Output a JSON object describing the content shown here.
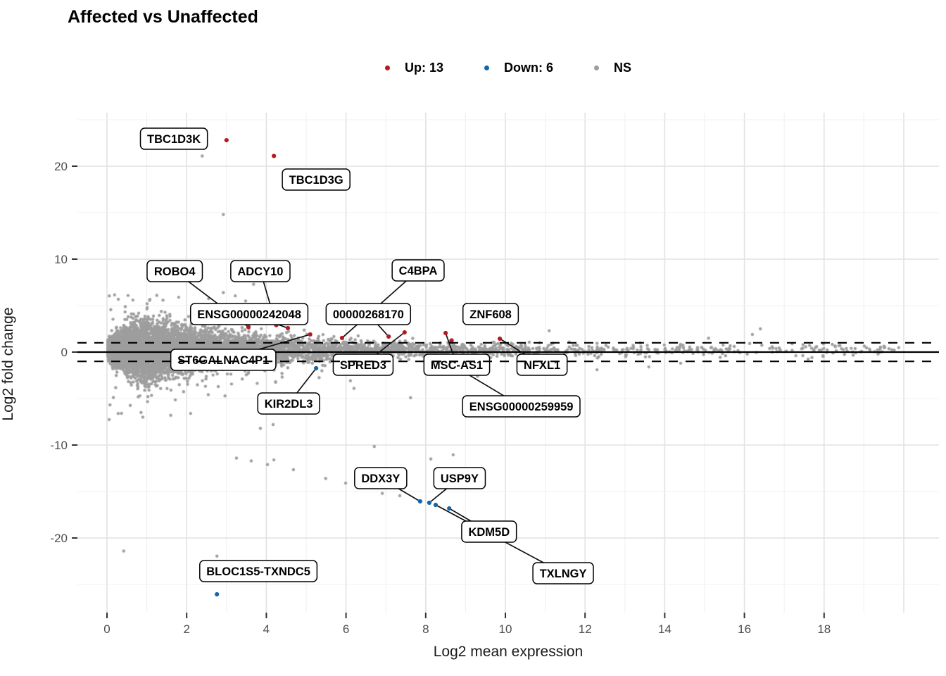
{
  "title": "Affected vs Unaffected",
  "legend": [
    {
      "label": "Up: 13",
      "color": "#B31B21"
    },
    {
      "label": "Down: 6",
      "color": "#1465AC"
    },
    {
      "label": "NS",
      "color": "#9E9E9E"
    }
  ],
  "axes": {
    "x": {
      "label": "Log2 mean expression",
      "ticks": [
        0,
        2,
        4,
        6,
        8,
        10,
        12,
        14,
        16,
        18
      ]
    },
    "y": {
      "label": "Log2 fold change",
      "ticks": [
        20,
        10,
        0,
        -10,
        -20
      ]
    }
  },
  "chart_data": {
    "type": "scatter",
    "title": "Affected vs Unaffected",
    "xlabel": "Log2 mean expression",
    "ylabel": "Log2 fold change",
    "xlim": [
      -0.74,
      20.9
    ],
    "ylim": [
      -28.0,
      25.8
    ],
    "grid": "on",
    "legend_position": "top",
    "legend_counts": {
      "up": 13,
      "down": 6,
      "ns": "NS"
    },
    "reference_lines": {
      "solid_y": 0,
      "dashed_y": [
        1,
        -1
      ]
    },
    "point_colors": {
      "up": "#B31B21",
      "down": "#1465AC",
      "ns": "#9E9E9E"
    },
    "labeled_points": [
      {
        "name": "TBC1D3K",
        "status": "up",
        "x": 3.0,
        "y": 22.8,
        "lx": 1.68,
        "ly": 22.95,
        "leader": false
      },
      {
        "name": "TBC1D3G",
        "status": "up",
        "x": 4.19,
        "y": 21.1,
        "lx": 5.25,
        "ly": 18.56,
        "leader": false
      },
      {
        "name": "ROBO4",
        "status": "up",
        "x": 3.55,
        "y": 2.7,
        "lx": 1.7,
        "ly": 8.71,
        "leader": true
      },
      {
        "name": "ADCY10",
        "status": "up",
        "x": 4.25,
        "y": 2.9,
        "lx": 3.85,
        "ly": 8.71,
        "leader": true
      },
      {
        "name": "C4BPA",
        "status": "up",
        "x": 5.9,
        "y": 1.52,
        "lx": 7.81,
        "ly": 8.79,
        "leader": true
      },
      {
        "name": "00000268170",
        "status": "up",
        "x": 7.07,
        "y": 1.67,
        "lx": 6.56,
        "ly": 4.09,
        "leader": true
      },
      {
        "name": "ENSG00000242048",
        "status": "up",
        "x": 4.54,
        "y": 2.58,
        "lx": 3.57,
        "ly": 4.09,
        "leader": true
      },
      {
        "name": "ZNF608",
        "status": "up",
        "x": 8.65,
        "y": 1.25,
        "lx": 9.63,
        "ly": 4.09,
        "leader": false
      },
      {
        "name": "ST6GALNAC4P1",
        "status": "up",
        "x": 5.1,
        "y": 1.9,
        "lx": 2.92,
        "ly": -0.83,
        "leader": true
      },
      {
        "name": "SPRED3",
        "status": "up",
        "x": 7.47,
        "y": 2.12,
        "lx": 6.43,
        "ly": -1.36,
        "leader": true
      },
      {
        "name": "MSC-AS1",
        "status": "up",
        "x": 8.5,
        "y": 2.05,
        "lx": 8.78,
        "ly": -1.36,
        "leader": true
      },
      {
        "name": "NFXL1",
        "status": "up",
        "x": 9.86,
        "y": 1.44,
        "lx": 10.92,
        "ly": -1.36,
        "leader": true
      },
      {
        "name": "ENSG00000259959",
        "status": "up",
        "x": 8.4,
        "y": -0.7,
        "lx": 10.4,
        "ly": -5.83,
        "leader": true
      },
      {
        "name": "KIR2DL3",
        "status": "down",
        "x": 5.25,
        "y": -1.74,
        "lx": 4.56,
        "ly": -5.53,
        "leader": true
      },
      {
        "name": "DDX3Y",
        "status": "down",
        "x": 7.86,
        "y": -16.06,
        "lx": 6.87,
        "ly": -13.56,
        "leader": true
      },
      {
        "name": "USP9Y",
        "status": "down",
        "x": 8.09,
        "y": -16.21,
        "lx": 8.85,
        "ly": -13.56,
        "leader": true
      },
      {
        "name": "TXLNGY",
        "status": "down",
        "x": 8.25,
        "y": -16.44,
        "lx": 11.45,
        "ly": -23.79,
        "leader": true
      },
      {
        "name": "KDM5D",
        "status": "down",
        "x": 8.59,
        "y": -16.82,
        "lx": 9.59,
        "ly": -19.32,
        "leader": true
      },
      {
        "name": "BLOC1S5-TXNDC5",
        "status": "down",
        "x": 2.76,
        "y": -26.06,
        "lx": 3.8,
        "ly": -23.56,
        "leader": false
      }
    ],
    "ns_outliers": [
      [
        2.39,
        21.1
      ],
      [
        2.92,
        14.8
      ],
      [
        0.42,
        -21.4
      ],
      [
        2.76,
        -21.95
      ],
      [
        3.25,
        -11.4
      ],
      [
        3.62,
        -11.7
      ],
      [
        4.03,
        -12.1
      ],
      [
        4.19,
        -11.6
      ],
      [
        4.68,
        -12.65
      ],
      [
        5.49,
        -13.6
      ],
      [
        5.99,
        -14.1
      ],
      [
        6.71,
        -10.15
      ],
      [
        8.13,
        -11.5
      ],
      [
        8.69,
        -11.05
      ],
      [
        6.91,
        -15.2
      ],
      [
        7.35,
        -15.45
      ],
      [
        3.85,
        -8.2
      ],
      [
        4.17,
        -7.8
      ],
      [
        7.62,
        -4.9
      ],
      [
        2.92,
        6.4
      ],
      [
        3.22,
        6.05
      ],
      [
        3.68,
        7.3
      ],
      [
        4.33,
        8.0
      ],
      [
        2.55,
        5.75
      ],
      [
        3.48,
        5.5
      ],
      [
        1.25,
        6.1
      ],
      [
        1.8,
        5.9
      ],
      [
        0.65,
        5.6
      ],
      [
        0.9,
        -7.0
      ],
      [
        1.6,
        -6.8
      ],
      [
        2.1,
        -6.6
      ],
      [
        18.4,
        0.7
      ],
      [
        19.4,
        0.3
      ],
      [
        19.5,
        0.62
      ],
      [
        19.7,
        0.25
      ],
      [
        16.2,
        1.9
      ],
      [
        16.4,
        2.5
      ],
      [
        15.1,
        1.5
      ],
      [
        17.2,
        0.9
      ],
      [
        17.6,
        -0.75
      ],
      [
        14.4,
        -1.2
      ],
      [
        13.6,
        -1.6
      ],
      [
        12.3,
        -1.9
      ],
      [
        11.1,
        2.3
      ],
      [
        10.5,
        -2.3
      ],
      [
        9.3,
        -2.6
      ],
      [
        6.2,
        -3.9
      ],
      [
        5.1,
        -4.6
      ]
    ]
  }
}
